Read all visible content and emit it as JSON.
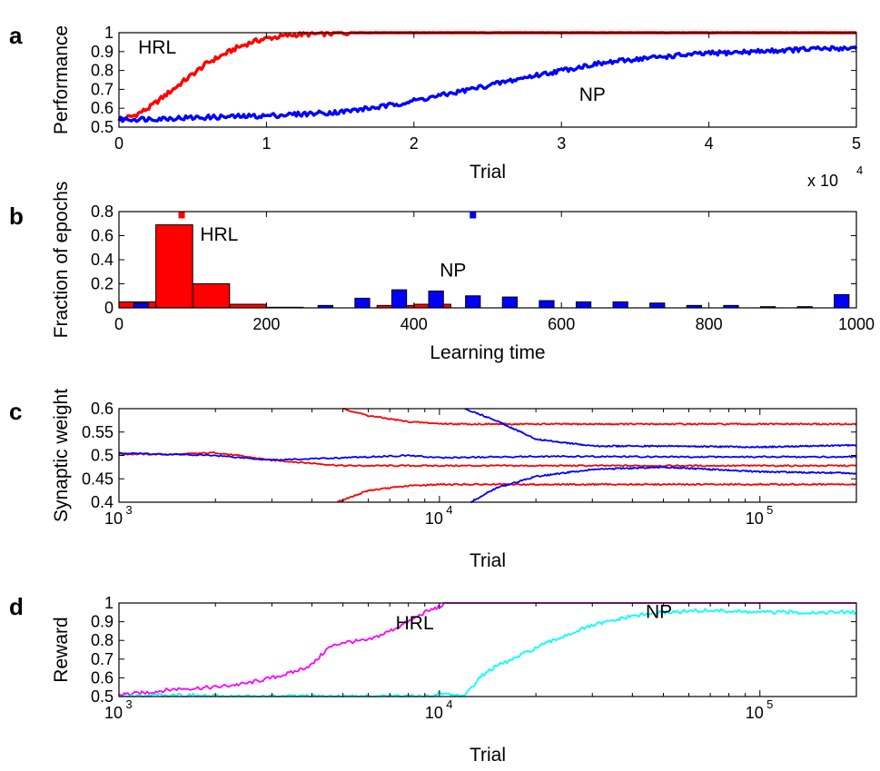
{
  "chart_data": [
    {
      "panel": "a",
      "type": "line",
      "xlabel": "Trial",
      "ylabel": "Performance",
      "x_multiplier_label": "x 10",
      "x_multiplier_exponent": "4",
      "xlim": [
        0,
        5
      ],
      "ylim": [
        0.5,
        1
      ],
      "xticks": [
        0,
        1,
        2,
        3,
        4,
        5
      ],
      "xtick_labels": [
        "0",
        "1",
        "2",
        "3",
        "4",
        "5"
      ],
      "yticks": [
        0.5,
        0.6,
        0.7,
        0.8,
        0.9,
        1
      ],
      "ytick_labels": [
        "0.5",
        "0.6",
        "0.7",
        "0.8",
        "0.9",
        "1"
      ],
      "series": [
        {
          "name": "HRL",
          "color": "#ff0000",
          "x": [
            0,
            0.1,
            0.2,
            0.3,
            0.4,
            0.5,
            0.6,
            0.7,
            0.8,
            0.9,
            1.0,
            1.1,
            1.2,
            1.4,
            1.6,
            2.0,
            3.0,
            4.0,
            5.0
          ],
          "y": [
            0.54,
            0.56,
            0.6,
            0.66,
            0.72,
            0.78,
            0.84,
            0.88,
            0.92,
            0.95,
            0.97,
            0.98,
            0.99,
            0.995,
            1.0,
            1.0,
            1.0,
            1.0,
            1.0
          ]
        },
        {
          "name": "NP",
          "color": "#0000ff",
          "x": [
            0,
            0.5,
            1.0,
            1.5,
            1.8,
            2.0,
            2.2,
            2.5,
            2.8,
            3.0,
            3.2,
            3.5,
            3.8,
            4.0,
            4.3,
            4.6,
            5.0
          ],
          "y": [
            0.54,
            0.55,
            0.56,
            0.58,
            0.61,
            0.64,
            0.67,
            0.72,
            0.77,
            0.8,
            0.83,
            0.86,
            0.88,
            0.89,
            0.9,
            0.91,
            0.92
          ]
        }
      ],
      "annotations": [
        {
          "text": "HRL",
          "x": 0.13,
          "y": 0.89
        },
        {
          "text": "NP",
          "x": 3.12,
          "y": 0.64
        }
      ]
    },
    {
      "panel": "b",
      "type": "bar",
      "xlabel": "Learning time",
      "ylabel": "Fraction of epochs",
      "xlim": [
        0,
        1000
      ],
      "ylim": [
        0,
        0.8
      ],
      "xticks": [
        0,
        200,
        400,
        600,
        800,
        1000
      ],
      "xtick_labels": [
        "0",
        "200",
        "400",
        "600",
        "800",
        "1000"
      ],
      "yticks": [
        0,
        0.2,
        0.4,
        0.6,
        0.8
      ],
      "ytick_labels": [
        "0",
        "0.2",
        "0.4",
        "0.6",
        "0.8"
      ],
      "series": [
        {
          "name": "HRL",
          "color": "#ff0000",
          "bin_width": 50,
          "x": [
            25,
            75,
            125,
            175,
            225,
            275,
            325,
            375,
            425,
            475,
            525,
            575,
            625,
            675,
            725,
            775,
            825,
            875,
            925,
            975
          ],
          "values": [
            0.05,
            0.69,
            0.2,
            0.03,
            0.005,
            0.0,
            0.0,
            0.02,
            0.03,
            0.0,
            0.0,
            0.0,
            0.0,
            0.0,
            0.0,
            0.0,
            0.0,
            0.0,
            0.0,
            0.0
          ]
        },
        {
          "name": "NP",
          "color": "#0000ff",
          "bin_width": 20,
          "x": [
            30,
            280,
            330,
            380,
            430,
            480,
            530,
            580,
            630,
            680,
            730,
            780,
            830,
            880,
            930,
            980
          ],
          "values": [
            0.04,
            0.02,
            0.08,
            0.15,
            0.14,
            0.1,
            0.09,
            0.06,
            0.05,
            0.05,
            0.04,
            0.02,
            0.02,
            0.01,
            0.01,
            0.11
          ]
        }
      ],
      "mean_markers": [
        {
          "series": "HRL",
          "x": 85,
          "y": 0.77
        },
        {
          "series": "NP",
          "x": 480,
          "y": 0.77
        }
      ],
      "annotations": [
        {
          "text": "HRL",
          "x": 110,
          "y": 0.56
        },
        {
          "text": "NP",
          "x": 435,
          "y": 0.26
        }
      ]
    },
    {
      "panel": "c",
      "type": "line",
      "xscale": "log",
      "xlabel": "Trial",
      "ylabel": "Synaptic weight",
      "xlim": [
        1000,
        200000
      ],
      "ylim": [
        0.4,
        0.6
      ],
      "xticks": [
        1000,
        10000,
        100000
      ],
      "xtick_base": "10",
      "xtick_exponents": [
        "3",
        "4",
        "5"
      ],
      "yticks": [
        0.4,
        0.45,
        0.5,
        0.55,
        0.6
      ],
      "ytick_labels": [
        "0.4",
        "0.45",
        "0.5",
        "0.55",
        "0.6"
      ],
      "series": [
        {
          "name": "HRL",
          "color": "#ff0000",
          "x": [
            1000,
            1500,
            2000,
            3000,
            5000,
            7000,
            10000,
            200000
          ],
          "y": [
            0.503,
            0.502,
            0.506,
            0.49,
            0.478,
            0.478,
            0.478,
            0.478
          ]
        },
        {
          "name": "HRL",
          "color": "#ff0000",
          "x": [
            5000,
            6000,
            8000,
            10000,
            12000,
            200000
          ],
          "y": [
            0.6,
            0.585,
            0.572,
            0.568,
            0.567,
            0.567
          ]
        },
        {
          "name": "HRL",
          "color": "#ff0000",
          "x": [
            4800,
            6000,
            8000,
            10000,
            200000
          ],
          "y": [
            0.4,
            0.425,
            0.435,
            0.438,
            0.438
          ]
        },
        {
          "name": "NP",
          "color": "#0000ff",
          "x": [
            1000,
            2000,
            3000,
            5000,
            8000,
            10000,
            20000,
            50000,
            100000,
            200000
          ],
          "y": [
            0.505,
            0.5,
            0.49,
            0.495,
            0.5,
            0.495,
            0.498,
            0.497,
            0.497,
            0.497
          ]
        },
        {
          "name": "NP",
          "color": "#0000ff",
          "x": [
            12000,
            15000,
            20000,
            30000,
            50000,
            100000,
            200000
          ],
          "y": [
            0.6,
            0.575,
            0.535,
            0.52,
            0.52,
            0.518,
            0.522
          ]
        },
        {
          "name": "NP",
          "color": "#0000ff",
          "x": [
            12500,
            15000,
            20000,
            30000,
            50000,
            100000,
            200000
          ],
          "y": [
            0.4,
            0.43,
            0.455,
            0.47,
            0.475,
            0.465,
            0.462
          ]
        }
      ]
    },
    {
      "panel": "d",
      "type": "line",
      "xscale": "log",
      "xlabel": "Trial",
      "ylabel": "Reward",
      "xlim": [
        1000,
        200000
      ],
      "ylim": [
        0.5,
        1
      ],
      "xticks": [
        1000,
        10000,
        100000
      ],
      "xtick_base": "10",
      "xtick_exponents": [
        "3",
        "4",
        "5"
      ],
      "yticks": [
        0.5,
        0.6,
        0.7,
        0.8,
        0.9,
        1
      ],
      "ytick_labels": [
        "0.5",
        "0.6",
        "0.7",
        "0.8",
        "0.9",
        "1"
      ],
      "series": [
        {
          "name": "HRL",
          "color": "#ff00ff",
          "x": [
            1000,
            1200,
            1500,
            2000,
            2500,
            3000,
            3500,
            4000,
            4500,
            5000,
            6000,
            7000,
            8000,
            9000,
            10000,
            10500,
            200000
          ],
          "y": [
            0.51,
            0.52,
            0.54,
            0.55,
            0.57,
            0.6,
            0.63,
            0.67,
            0.76,
            0.79,
            0.8,
            0.85,
            0.9,
            0.95,
            0.98,
            1.0,
            1.0
          ]
        },
        {
          "name": "NP",
          "color": "#00ffff",
          "x": [
            1000,
            1500,
            2000,
            5000,
            8000,
            9500,
            10000,
            12000,
            13000,
            14000,
            15000,
            17000,
            20000,
            25000,
            30000,
            40000,
            50000,
            70000,
            100000,
            200000
          ],
          "y": [
            0.5,
            0.51,
            0.5,
            0.5,
            0.5,
            0.5,
            0.52,
            0.5,
            0.58,
            0.63,
            0.66,
            0.7,
            0.76,
            0.83,
            0.88,
            0.93,
            0.95,
            0.96,
            0.95,
            0.95
          ]
        }
      ],
      "annotations": [
        {
          "text": "HRL",
          "x": 7300,
          "y": 0.86
        },
        {
          "text": "NP",
          "x": 44000,
          "y": 0.92
        }
      ]
    }
  ]
}
